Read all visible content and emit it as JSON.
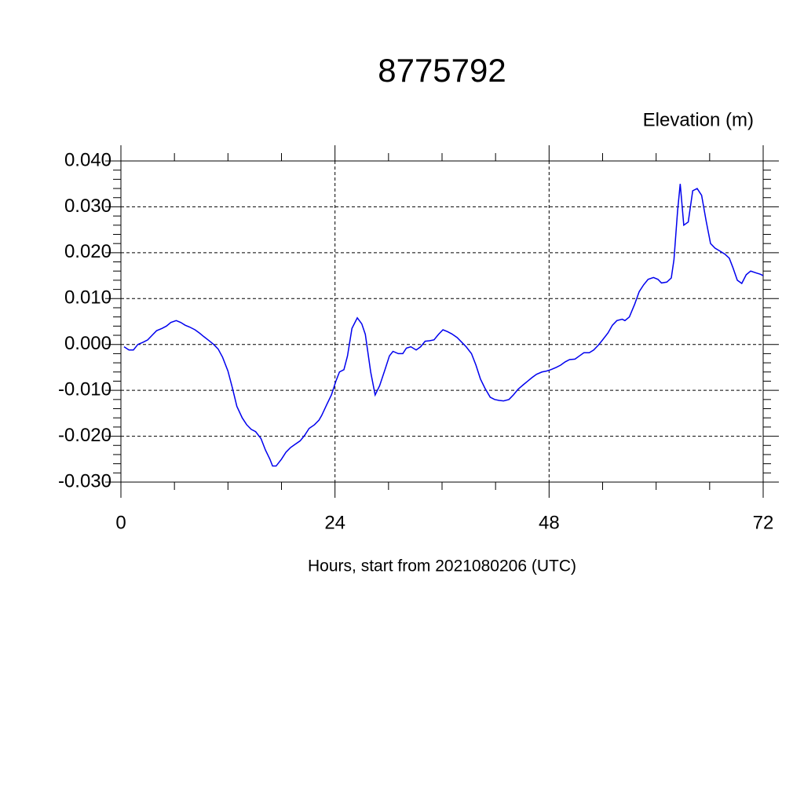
{
  "chart_data": {
    "type": "line",
    "title": "8775792",
    "y_axis_label": "Elevation (m)",
    "x_axis_label": "Hours, start from 2021080206 (UTC)",
    "xlim": [
      0,
      72
    ],
    "xticks": [
      0,
      24,
      48,
      72
    ],
    "xminorticks": [
      6,
      12,
      18,
      30,
      36,
      42,
      54,
      60,
      66
    ],
    "ylim": [
      -0.03,
      0.04
    ],
    "yticks": [
      {
        "value": -0.03,
        "label": "-0.030"
      },
      {
        "value": -0.02,
        "label": "-0.020"
      },
      {
        "value": -0.01,
        "label": "-0.010"
      },
      {
        "value": 0,
        "label": "0.000"
      },
      {
        "value": 0.01,
        "label": "0.010"
      },
      {
        "value": 0.02,
        "label": "0.020"
      },
      {
        "value": 0.03,
        "label": "0.030"
      },
      {
        "value": 0.04,
        "label": "0.040"
      }
    ],
    "grid": true,
    "series": [
      {
        "color": "#0000ee",
        "x": [
          0.35,
          0.9,
          1.4,
          1.9,
          2.5,
          3.0,
          3.5,
          4.0,
          4.6,
          5.1,
          5.6,
          6.2,
          6.7,
          7.2,
          7.7,
          8.3,
          8.8,
          9.3,
          9.9,
          10.4,
          10.9,
          11.4,
          12.0,
          12.5,
          13.0,
          13.6,
          14.1,
          14.6,
          15.1,
          15.7,
          16.2,
          16.7,
          17.0,
          17.4,
          18.0,
          18.5,
          19.0,
          19.5,
          20.1,
          20.6,
          21.1,
          21.7,
          22.2,
          22.5,
          23.1,
          23.6,
          24.1,
          24.5,
          25.0,
          25.4,
          25.9,
          26.5,
          27.0,
          27.4,
          28.0,
          28.5,
          29.0,
          29.6,
          30.1,
          30.5,
          31.1,
          31.6,
          32.0,
          32.5,
          33.1,
          33.6,
          34.1,
          34.6,
          35.1,
          35.6,
          36.1,
          36.6,
          37.1,
          37.7,
          38.2,
          38.7,
          39.3,
          39.8,
          40.3,
          40.8,
          41.4,
          41.9,
          42.4,
          42.9,
          43.5,
          44.0,
          44.5,
          45.1,
          45.6,
          46.1,
          46.6,
          47.2,
          47.7,
          48.2,
          48.8,
          49.3,
          49.8,
          50.3,
          50.9,
          51.4,
          51.9,
          52.5,
          53.0,
          53.5,
          54.0,
          54.6,
          55.1,
          55.6,
          56.2,
          56.5,
          57.0,
          57.6,
          58.1,
          58.6,
          59.1,
          59.7,
          60.2,
          60.6,
          61.2,
          61.7,
          62.0,
          62.4,
          62.7,
          63.1,
          63.6,
          64.1,
          64.6,
          65.1,
          65.6,
          66.1,
          66.6,
          67.2,
          67.7,
          68.2,
          68.6,
          69.1,
          69.6,
          70.1,
          70.6,
          71.2,
          71.7,
          72.0
        ],
        "values": [
          -0.0005,
          -0.0012,
          -0.0012,
          0.0,
          0.0005,
          0.001,
          0.002,
          0.003,
          0.0035,
          0.004,
          0.0048,
          0.0052,
          0.0048,
          0.0042,
          0.0038,
          0.0032,
          0.0025,
          0.0017,
          0.0008,
          0.0,
          -0.001,
          -0.0028,
          -0.0058,
          -0.0095,
          -0.0135,
          -0.016,
          -0.0175,
          -0.0185,
          -0.019,
          -0.0205,
          -0.023,
          -0.025,
          -0.0265,
          -0.0265,
          -0.025,
          -0.0235,
          -0.0225,
          -0.0218,
          -0.021,
          -0.0198,
          -0.0183,
          -0.0175,
          -0.0165,
          -0.0155,
          -0.013,
          -0.011,
          -0.008,
          -0.006,
          -0.0055,
          -0.0025,
          0.0035,
          0.0058,
          0.0045,
          0.0022,
          -0.006,
          -0.011,
          -0.009,
          -0.0055,
          -0.0025,
          -0.0015,
          -0.002,
          -0.002,
          -0.0008,
          -0.0005,
          -0.0012,
          -0.0005,
          0.0007,
          0.0008,
          0.001,
          0.0022,
          0.0032,
          0.0028,
          0.0023,
          0.0015,
          0.0005,
          -0.0005,
          -0.002,
          -0.0045,
          -0.0075,
          -0.0095,
          -0.0115,
          -0.012,
          -0.0122,
          -0.0123,
          -0.012,
          -0.011,
          -0.0098,
          -0.0088,
          -0.008,
          -0.0072,
          -0.0065,
          -0.006,
          -0.0058,
          -0.0055,
          -0.005,
          -0.0045,
          -0.0038,
          -0.0033,
          -0.0032,
          -0.0025,
          -0.0018,
          -0.0018,
          -0.0012,
          -0.0002,
          0.001,
          0.0025,
          0.0042,
          0.0052,
          0.0055,
          0.0052,
          0.006,
          0.0088,
          0.0115,
          0.013,
          0.0142,
          0.0146,
          0.0142,
          0.0134,
          0.0136,
          0.0145,
          0.0185,
          0.029,
          0.035,
          0.026,
          0.0267,
          0.0335,
          0.034,
          0.0325,
          0.027,
          0.022,
          0.021,
          0.0203,
          0.0197,
          0.0188,
          0.0168,
          0.014,
          0.0133,
          0.0152,
          0.016,
          0.0156,
          0.0153,
          0.015
        ]
      }
    ]
  }
}
